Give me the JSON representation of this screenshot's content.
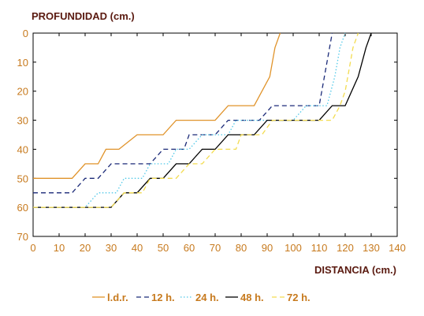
{
  "chart_data": {
    "type": "line",
    "ylabel": "PROFUNDIDAD (cm.)",
    "xlabel": "DISTANCIA (cm.)",
    "xlim": [
      0,
      140
    ],
    "ylim": [
      0,
      70
    ],
    "y_inverted": true,
    "x_ticks": [
      0,
      10,
      20,
      30,
      40,
      50,
      60,
      70,
      80,
      90,
      100,
      110,
      120,
      130,
      140
    ],
    "y_ticks": [
      0,
      10,
      20,
      30,
      40,
      50,
      60,
      70
    ],
    "grid": false,
    "legend_position": "bottom",
    "series": [
      {
        "name": "l.d.r.",
        "color": "#e0932a",
        "dash": "solid",
        "points": [
          [
            0,
            50
          ],
          [
            15,
            50
          ],
          [
            20,
            45
          ],
          [
            25,
            45
          ],
          [
            28,
            40
          ],
          [
            33,
            40
          ],
          [
            40,
            35
          ],
          [
            50,
            35
          ],
          [
            55,
            30
          ],
          [
            70,
            30
          ],
          [
            75,
            25
          ],
          [
            85,
            25
          ],
          [
            88,
            20
          ],
          [
            91,
            15
          ],
          [
            93,
            5
          ],
          [
            95,
            0
          ]
        ]
      },
      {
        "name": "12 h.",
        "color": "#1b2a78",
        "dash": "dashed",
        "points": [
          [
            0,
            55
          ],
          [
            15,
            55
          ],
          [
            20,
            50
          ],
          [
            25,
            50
          ],
          [
            30,
            45
          ],
          [
            45,
            45
          ],
          [
            50,
            40
          ],
          [
            58,
            40
          ],
          [
            60,
            35
          ],
          [
            70,
            35
          ],
          [
            75,
            30
          ],
          [
            87,
            30
          ],
          [
            92,
            25
          ],
          [
            110,
            25
          ],
          [
            112,
            15
          ],
          [
            114,
            5
          ],
          [
            115,
            0
          ]
        ]
      },
      {
        "name": "24 h.",
        "color": "#4fc8e8",
        "dash": "dotted",
        "points": [
          [
            0,
            60
          ],
          [
            20,
            60
          ],
          [
            25,
            55
          ],
          [
            32,
            55
          ],
          [
            35,
            50
          ],
          [
            42,
            50
          ],
          [
            45,
            45
          ],
          [
            52,
            45
          ],
          [
            55,
            40
          ],
          [
            60,
            40
          ],
          [
            65,
            35
          ],
          [
            75,
            35
          ],
          [
            78,
            30
          ],
          [
            100,
            30
          ],
          [
            105,
            25
          ],
          [
            113,
            25
          ],
          [
            116,
            15
          ],
          [
            118,
            5
          ],
          [
            120,
            0
          ]
        ]
      },
      {
        "name": "48 h.",
        "color": "#000000",
        "dash": "solid",
        "points": [
          [
            0,
            60
          ],
          [
            30,
            60
          ],
          [
            35,
            55
          ],
          [
            40,
            55
          ],
          [
            45,
            50
          ],
          [
            50,
            50
          ],
          [
            55,
            45
          ],
          [
            60,
            45
          ],
          [
            65,
            40
          ],
          [
            70,
            40
          ],
          [
            75,
            35
          ],
          [
            85,
            35
          ],
          [
            90,
            30
          ],
          [
            110,
            30
          ],
          [
            115,
            25
          ],
          [
            120,
            25
          ],
          [
            125,
            15
          ],
          [
            128,
            5
          ],
          [
            130,
            0
          ]
        ]
      },
      {
        "name": "72 h.",
        "color": "#f3dc50",
        "dash": "dashed",
        "points": [
          [
            0,
            60
          ],
          [
            30,
            60
          ],
          [
            35,
            55
          ],
          [
            42,
            55
          ],
          [
            45,
            50
          ],
          [
            55,
            50
          ],
          [
            60,
            45
          ],
          [
            65,
            45
          ],
          [
            70,
            40
          ],
          [
            78,
            40
          ],
          [
            80,
            35
          ],
          [
            88,
            35
          ],
          [
            92,
            30
          ],
          [
            110,
            30
          ],
          [
            115,
            30
          ],
          [
            118,
            25
          ],
          [
            120,
            20
          ],
          [
            122,
            10
          ],
          [
            123,
            5
          ],
          [
            125,
            0
          ]
        ]
      }
    ]
  }
}
